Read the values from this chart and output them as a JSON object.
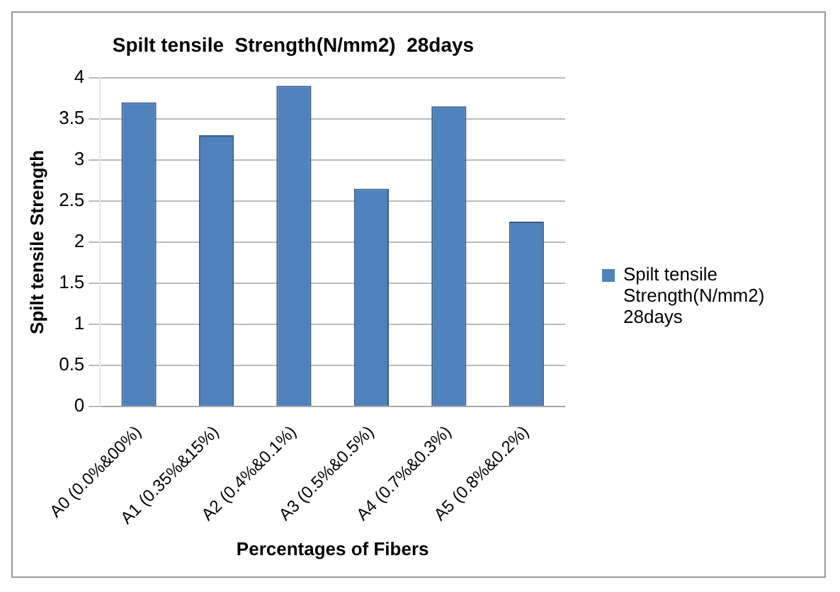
{
  "chart_data": {
    "type": "bar",
    "title": "Spilt tensile  Strength(N/mm2)  28days",
    "xlabel": "Percentages of Fibers",
    "ylabel": "Spilt tensile Strength",
    "categories": [
      "A0 (0.0%&00%)",
      "A1 (0.35%&15%)",
      "A2 (0.4%&0.1%)",
      "A3 (0.5%&0.5%)",
      "A4 (0.7%&0.3%)",
      "A5 (0.8%&0.2%)"
    ],
    "series": [
      {
        "name": "Spilt tensile Strength(N/mm2)  28days",
        "color": "#4f81bd",
        "values": [
          3.7,
          3.3,
          3.9,
          2.65,
          3.65,
          2.25
        ]
      }
    ],
    "ylim": [
      0,
      4
    ],
    "yticks": [
      0,
      0.5,
      1,
      1.5,
      2,
      2.5,
      3,
      3.5,
      4
    ],
    "grid": "y",
    "legend": "right"
  }
}
